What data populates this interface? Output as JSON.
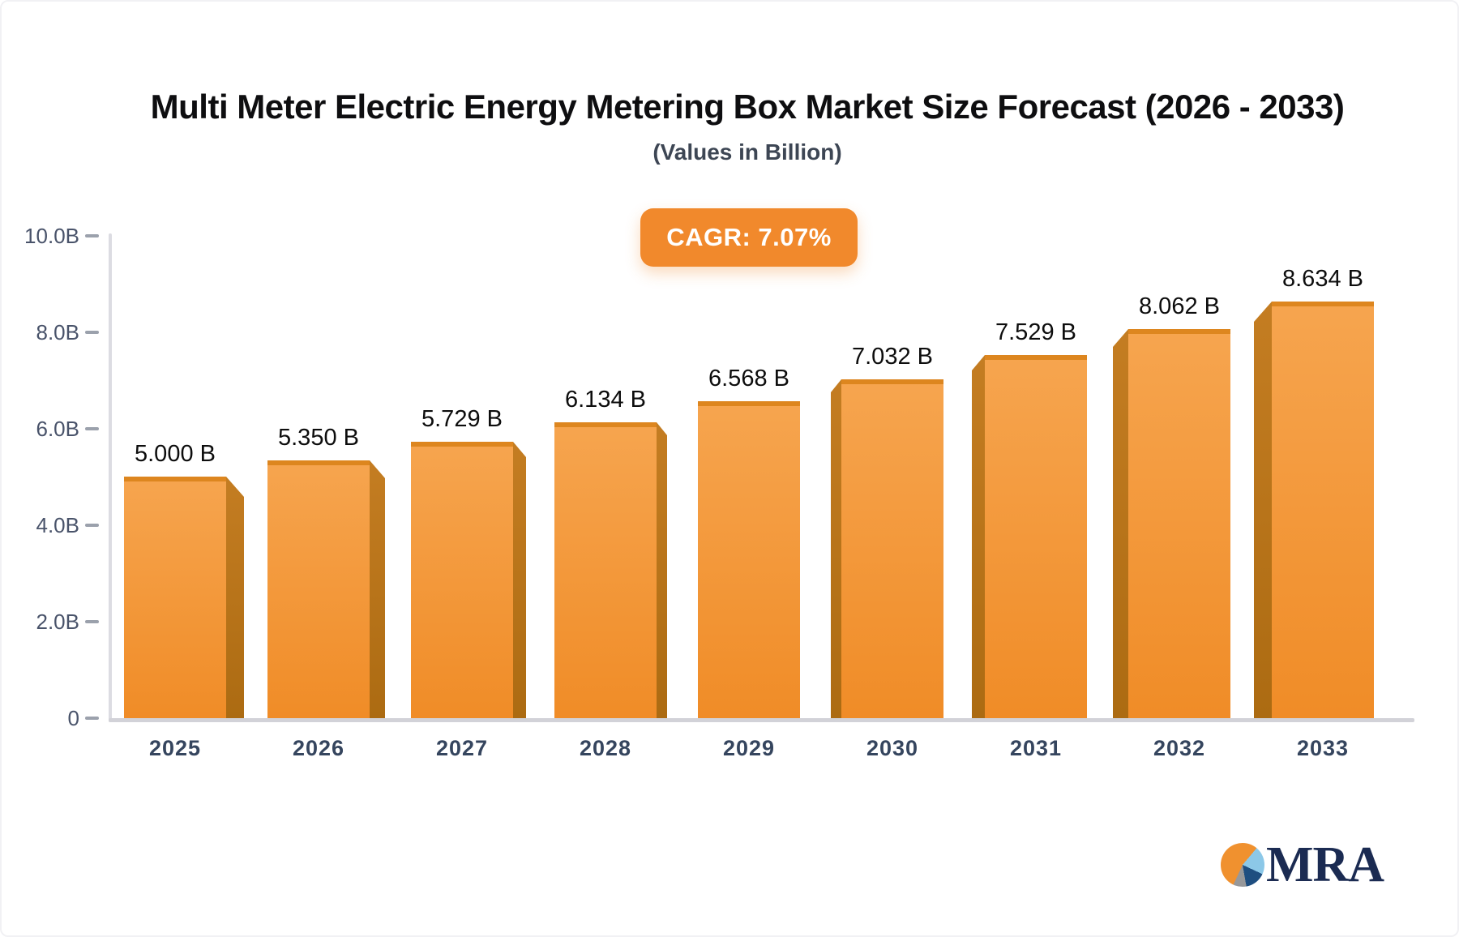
{
  "title": "Multi Meter Electric Energy Metering Box Market Size Forecast (2026 - 2033)",
  "subtitle": "(Values in Billion)",
  "cagr_badge": "CAGR: 7.07%",
  "logo": {
    "text": "MRA"
  },
  "colors": {
    "accent_orange": "#f1892c",
    "bar_face_top": "#f6a54f",
    "bar_face_bottom": "#f08c27",
    "bar_top_edge": "#dd861f",
    "bar_side_top": "#c47d22",
    "bar_side_bottom": "#ac6b12",
    "axis_line": "#dcdce2",
    "baseline": "#d2d2d8",
    "tick_mark": "#9ba1ac",
    "text_dark": "#0e0e10",
    "text_slate": "#35455e"
  },
  "chart_data": {
    "type": "bar",
    "title": "Multi Meter Electric Energy Metering Box Market Size Forecast (2026 - 2033)",
    "subtitle": "(Values in Billion)",
    "annotation": "CAGR: 7.07%",
    "categories": [
      "2025",
      "2026",
      "2027",
      "2028",
      "2029",
      "2030",
      "2031",
      "2032",
      "2033"
    ],
    "values": [
      5.0,
      5.35,
      5.729,
      6.134,
      6.568,
      7.032,
      7.529,
      8.062,
      8.634
    ],
    "value_labels": [
      "5.000 B",
      "5.350 B",
      "5.729 B",
      "6.134 B",
      "6.568 B",
      "7.032 B",
      "7.529 B",
      "8.062 B",
      "8.634 B"
    ],
    "xlabel": "",
    "ylabel": "",
    "ylim": [
      0,
      10
    ],
    "y_ticks": [
      {
        "label": "10.0B",
        "value": 10
      },
      {
        "label": "8.0B",
        "value": 8
      },
      {
        "label": "6.0B",
        "value": 6
      },
      {
        "label": "4.0B",
        "value": 4
      },
      {
        "label": "2.0B",
        "value": 2
      },
      {
        "label": "0",
        "value": 0
      }
    ],
    "grid": "off",
    "legend": "none",
    "bar_style": "3d-perspective, sides face chart center"
  }
}
